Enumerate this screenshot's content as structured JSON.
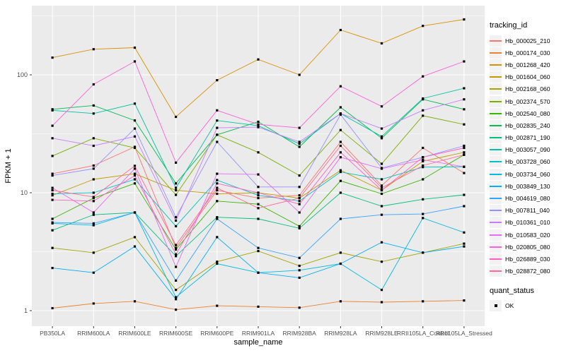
{
  "figure": {
    "y_axis_title": "FPKM + 1",
    "x_axis_title": "sample_name",
    "color_legend_title": "tracking_id",
    "shape_legend_title": "quant_status",
    "shape_legend_item": "OK",
    "panel_bg": "#EBEBEB",
    "grid_color": "#FFFFFF",
    "tick_label_color": "#4D4D4D",
    "marker_color": "#000000",
    "legend_key_bg": "#F2F2F2"
  },
  "chart_data": {
    "type": "line",
    "title": "",
    "xlabel": "sample_name",
    "ylabel": "FPKM + 1",
    "y_scale": "log10",
    "y_major_ticks": [
      1,
      10,
      100
    ],
    "y_minor_gridlines": [
      3.162,
      31.623,
      316.23
    ],
    "ylim_approx": [
      0.74,
      386
    ],
    "grid": true,
    "legend_position": "right",
    "legend_title": "tracking_id",
    "shape_legend": {
      "title": "quant_status",
      "items": [
        {
          "label": "OK",
          "marker": "black-square"
        }
      ]
    },
    "point_marker": "black-square",
    "categories": [
      "PB350LA",
      "RRIM600LA",
      "RRIM600LE",
      "RRIM600SE",
      "RRIM600PE",
      "RRIM901LA",
      "RRIM928BA",
      "RRIM928LA",
      "RRIM928LE",
      "RRII105LA_Control",
      "RRII105LA_Stressed"
    ],
    "series": [
      {
        "name": "Hb_000025_210",
        "color": "#F8766D",
        "values": [
          14.5,
          17,
          24.5,
          3.4,
          10.5,
          9,
          9.5,
          27,
          11.5,
          24,
          14.7
        ]
      },
      {
        "name": "Hb_000174_030",
        "color": "#EA8331",
        "values": [
          1.05,
          1.15,
          1.2,
          1.02,
          1.1,
          1.08,
          1.06,
          1.2,
          1.18,
          1.2,
          1.22
        ]
      },
      {
        "name": "Hb_001268_420",
        "color": "#D89000",
        "values": [
          140,
          165,
          170,
          44,
          90,
          135,
          100,
          240,
          185,
          260,
          295
        ]
      },
      {
        "name": "Hb_001604_060",
        "color": "#C09B00",
        "values": [
          9.5,
          13,
          14.5,
          10.5,
          9.8,
          10,
          9,
          15.5,
          10.5,
          18.5,
          22
        ]
      },
      {
        "name": "Hb_002168_060",
        "color": "#A3A500",
        "values": [
          3.4,
          3.1,
          4.2,
          1.5,
          2.6,
          3.2,
          2.4,
          3.1,
          2.6,
          3.1,
          3.7
        ]
      },
      {
        "name": "Hb_002374_570",
        "color": "#7CAE00",
        "values": [
          20.5,
          29,
          24,
          9.6,
          31,
          22,
          14,
          34,
          17.6,
          45,
          38
        ]
      },
      {
        "name": "Hb_002540_080",
        "color": "#39B600",
        "values": [
          6,
          9,
          12,
          3.3,
          8.5,
          8,
          5.2,
          12.6,
          9.8,
          13,
          21
        ]
      },
      {
        "name": "Hb_002835_240",
        "color": "#00BB4E",
        "values": [
          51,
          55,
          41,
          12,
          31,
          40,
          24.5,
          53,
          29,
          62,
          51
        ]
      },
      {
        "name": "Hb_002871_190",
        "color": "#00BF7D",
        "values": [
          4.8,
          6.5,
          6.8,
          2.9,
          6.2,
          6,
          5,
          10,
          7.7,
          8.8,
          9.6
        ]
      },
      {
        "name": "Hb_003057_090",
        "color": "#00C1A3",
        "values": [
          50,
          47,
          57,
          11,
          41,
          37,
          26,
          47,
          30,
          63,
          77
        ]
      },
      {
        "name": "Hb_003728_060",
        "color": "#00BFC4",
        "values": [
          9.8,
          10,
          13,
          5.2,
          12.8,
          9.5,
          8.5,
          15,
          13,
          16.5,
          16.6
        ]
      },
      {
        "name": "Hb_003734_060",
        "color": "#00BAE0",
        "values": [
          5.5,
          5.3,
          6.8,
          1.3,
          2.5,
          2.1,
          2.2,
          2.5,
          1.5,
          6.1,
          4.6
        ]
      },
      {
        "name": "Hb_003849_130",
        "color": "#00B0F6",
        "values": [
          2.3,
          2.1,
          3.5,
          1.25,
          4.2,
          2.1,
          1.9,
          2.5,
          3.8,
          3.1,
          3.5
        ]
      },
      {
        "name": "Hb_004619_080",
        "color": "#35A2FF",
        "values": [
          5.6,
          5.5,
          6.8,
          1.8,
          6,
          3.4,
          2.8,
          6,
          6.5,
          6.6,
          7.7
        ]
      },
      {
        "name": "Hb_007811_040",
        "color": "#9590FF",
        "values": [
          14,
          16,
          35,
          6.2,
          27,
          11.2,
          11.2,
          46,
          16.2,
          20,
          25
        ]
      },
      {
        "name": "Hb_010361_010",
        "color": "#C77CFF",
        "values": [
          29,
          25,
          30,
          5.8,
          35.5,
          36,
          27,
          47,
          35,
          50,
          62
        ]
      },
      {
        "name": "Hb_010583_020",
        "color": "#E76BF3",
        "values": [
          11,
          6.8,
          16,
          2.35,
          14.5,
          14.3,
          6.8,
          20,
          16,
          19,
          16.6
        ]
      },
      {
        "name": "Hb_020805_080",
        "color": "#FA62DB",
        "values": [
          37,
          83,
          130,
          18,
          50,
          38,
          35.5,
          80,
          54,
          97,
          130
        ]
      },
      {
        "name": "Hb_026889_030",
        "color": "#FF61C3",
        "values": [
          8.7,
          8.5,
          14,
          3,
          12,
          10,
          8,
          22,
          10.5,
          20,
          24
        ]
      },
      {
        "name": "Hb_028872_080",
        "color": "#FF6A98",
        "values": [
          10.5,
          9.2,
          16.9,
          3.6,
          11,
          7.4,
          9,
          25,
          11,
          17,
          21
        ]
      }
    ]
  }
}
